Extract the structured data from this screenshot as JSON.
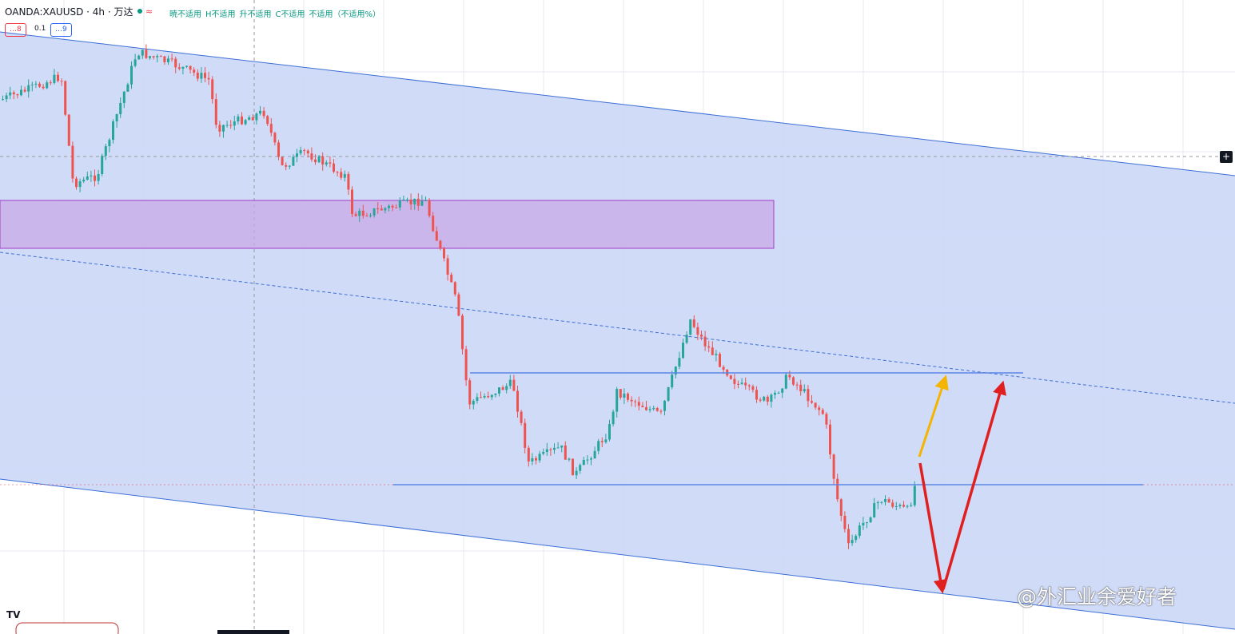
{
  "header": {
    "symbol": "OANDA:XAUUSD · 4h · 万达",
    "status_icon": "≈",
    "ohlc": [
      "暁不适用",
      "H不适用",
      "升不适用",
      "C不适用",
      "不适用（不适用%）"
    ],
    "sell": "…8",
    "spread": "0.1",
    "buy": "…9"
  },
  "footer": {
    "logo": "TV",
    "watermark": "@外汇业余爱好者"
  }
}
